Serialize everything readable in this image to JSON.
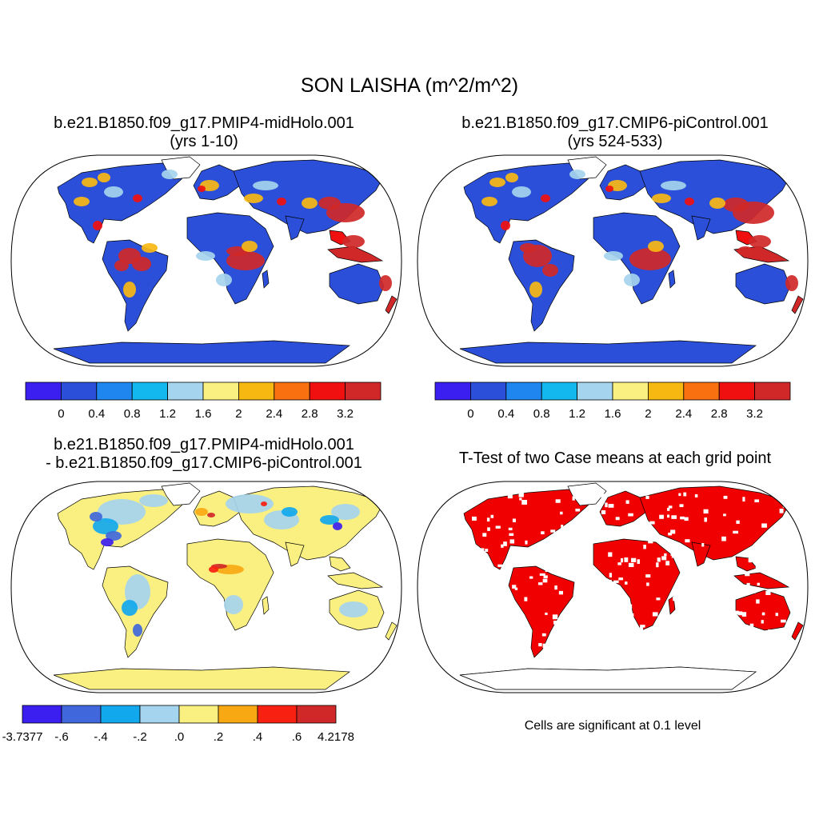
{
  "main_title": "SON LAISHA (m^2/m^2)",
  "panels": [
    {
      "title_line1": "b.e21.B1850.f09_g17.PMIP4-midHolo.001",
      "title_line2": "(yrs 1-10)"
    },
    {
      "title_line1": "b.e21.B1850.f09_g17.CMIP6-piControl.001",
      "title_line2": "(yrs 524-533)"
    },
    {
      "title_line1": "b.e21.B1850.f09_g17.PMIP4-midHolo.001",
      "title_line2": "- b.e21.B1850.f09_g17.CMIP6-piControl.001"
    },
    {
      "title_line1": "T-Test of two Case means at each grid point",
      "note": "Cells are significant at 0.1 level"
    }
  ],
  "colorbar_abs": {
    "colors": [
      "#3b1ef0",
      "#2b4fd8",
      "#1e86ee",
      "#12b8ee",
      "#a5d4ee",
      "#faf082",
      "#f8b812",
      "#f87010",
      "#f01010",
      "#d02828"
    ],
    "labels": [
      "0",
      "0.4",
      "0.8",
      "1.2",
      "1.6",
      "2",
      "2.4",
      "2.8",
      "3.2"
    ]
  },
  "colorbar_diff": {
    "colors": [
      "#3b1ef0",
      "#4068dc",
      "#12a8ee",
      "#a5d4ee",
      "#faf082",
      "#f8a812",
      "#f82010",
      "#d02828"
    ],
    "labels": [
      "-3.7377",
      "-.6",
      "-.4",
      "-.2",
      ".0",
      ".2",
      ".4",
      ".6",
      "4.2178"
    ]
  },
  "colors": {
    "ocean": "#ffffff",
    "land_low": "#2b4fd8",
    "land_high": "#d02828",
    "diff_land": "#faf082",
    "significant": "#f00000",
    "coast": "#000000"
  }
}
